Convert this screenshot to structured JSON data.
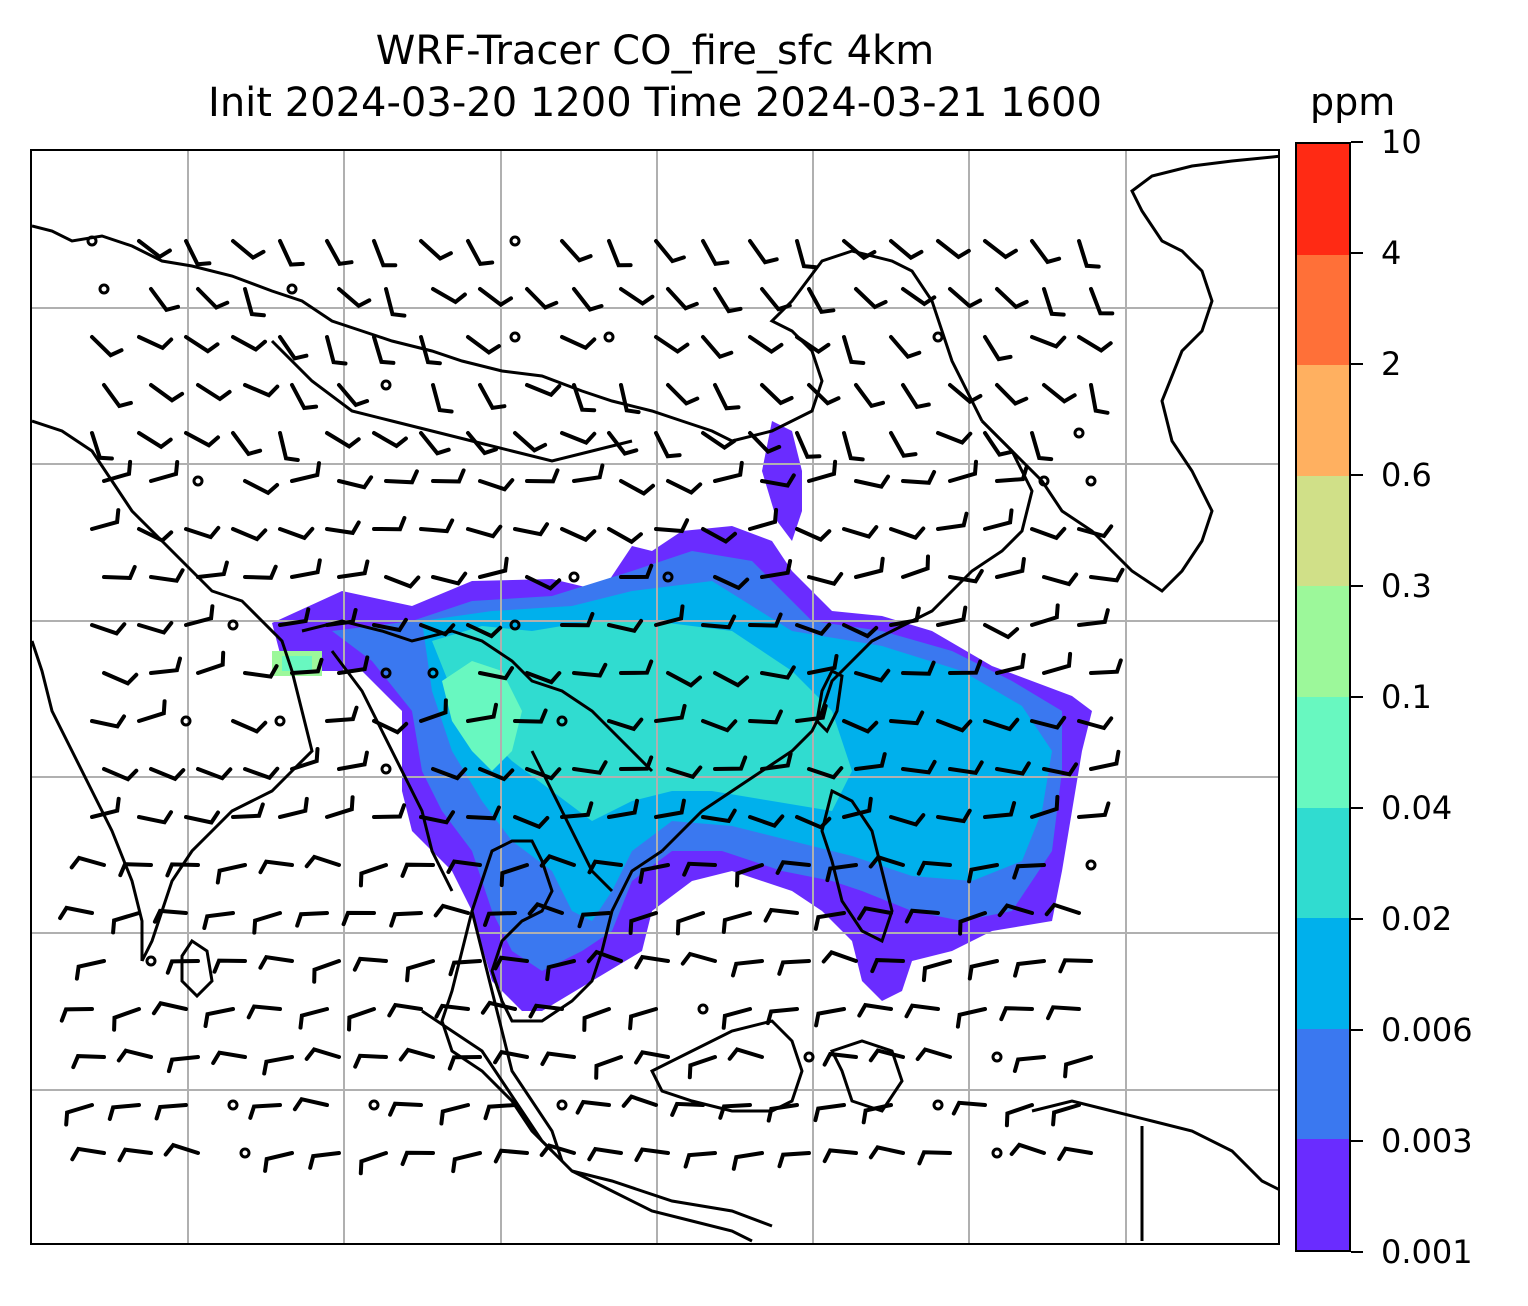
{
  "title_line1": "WRF-Tracer CO_fire_sfc 4km",
  "title_line2": "Init 2024-03-20 1200 Time 2024-03-21 1600",
  "colorbar": {
    "unit": "ppm",
    "levels": [
      "0.001",
      "0.003",
      "0.006",
      "0.02",
      "0.04",
      "0.1",
      "0.3",
      "0.6",
      "2",
      "4",
      "10"
    ],
    "colors": [
      "#6a2cff",
      "#3a78f0",
      "#00b0ec",
      "#30dcd0",
      "#68f8c0",
      "#9cf89a",
      "#d0e088",
      "#ffb060",
      "#ff7038",
      "#ff2a14"
    ]
  },
  "map": {
    "gridlines": "on",
    "overlay": "wind barbs",
    "coastlines": "on"
  }
}
